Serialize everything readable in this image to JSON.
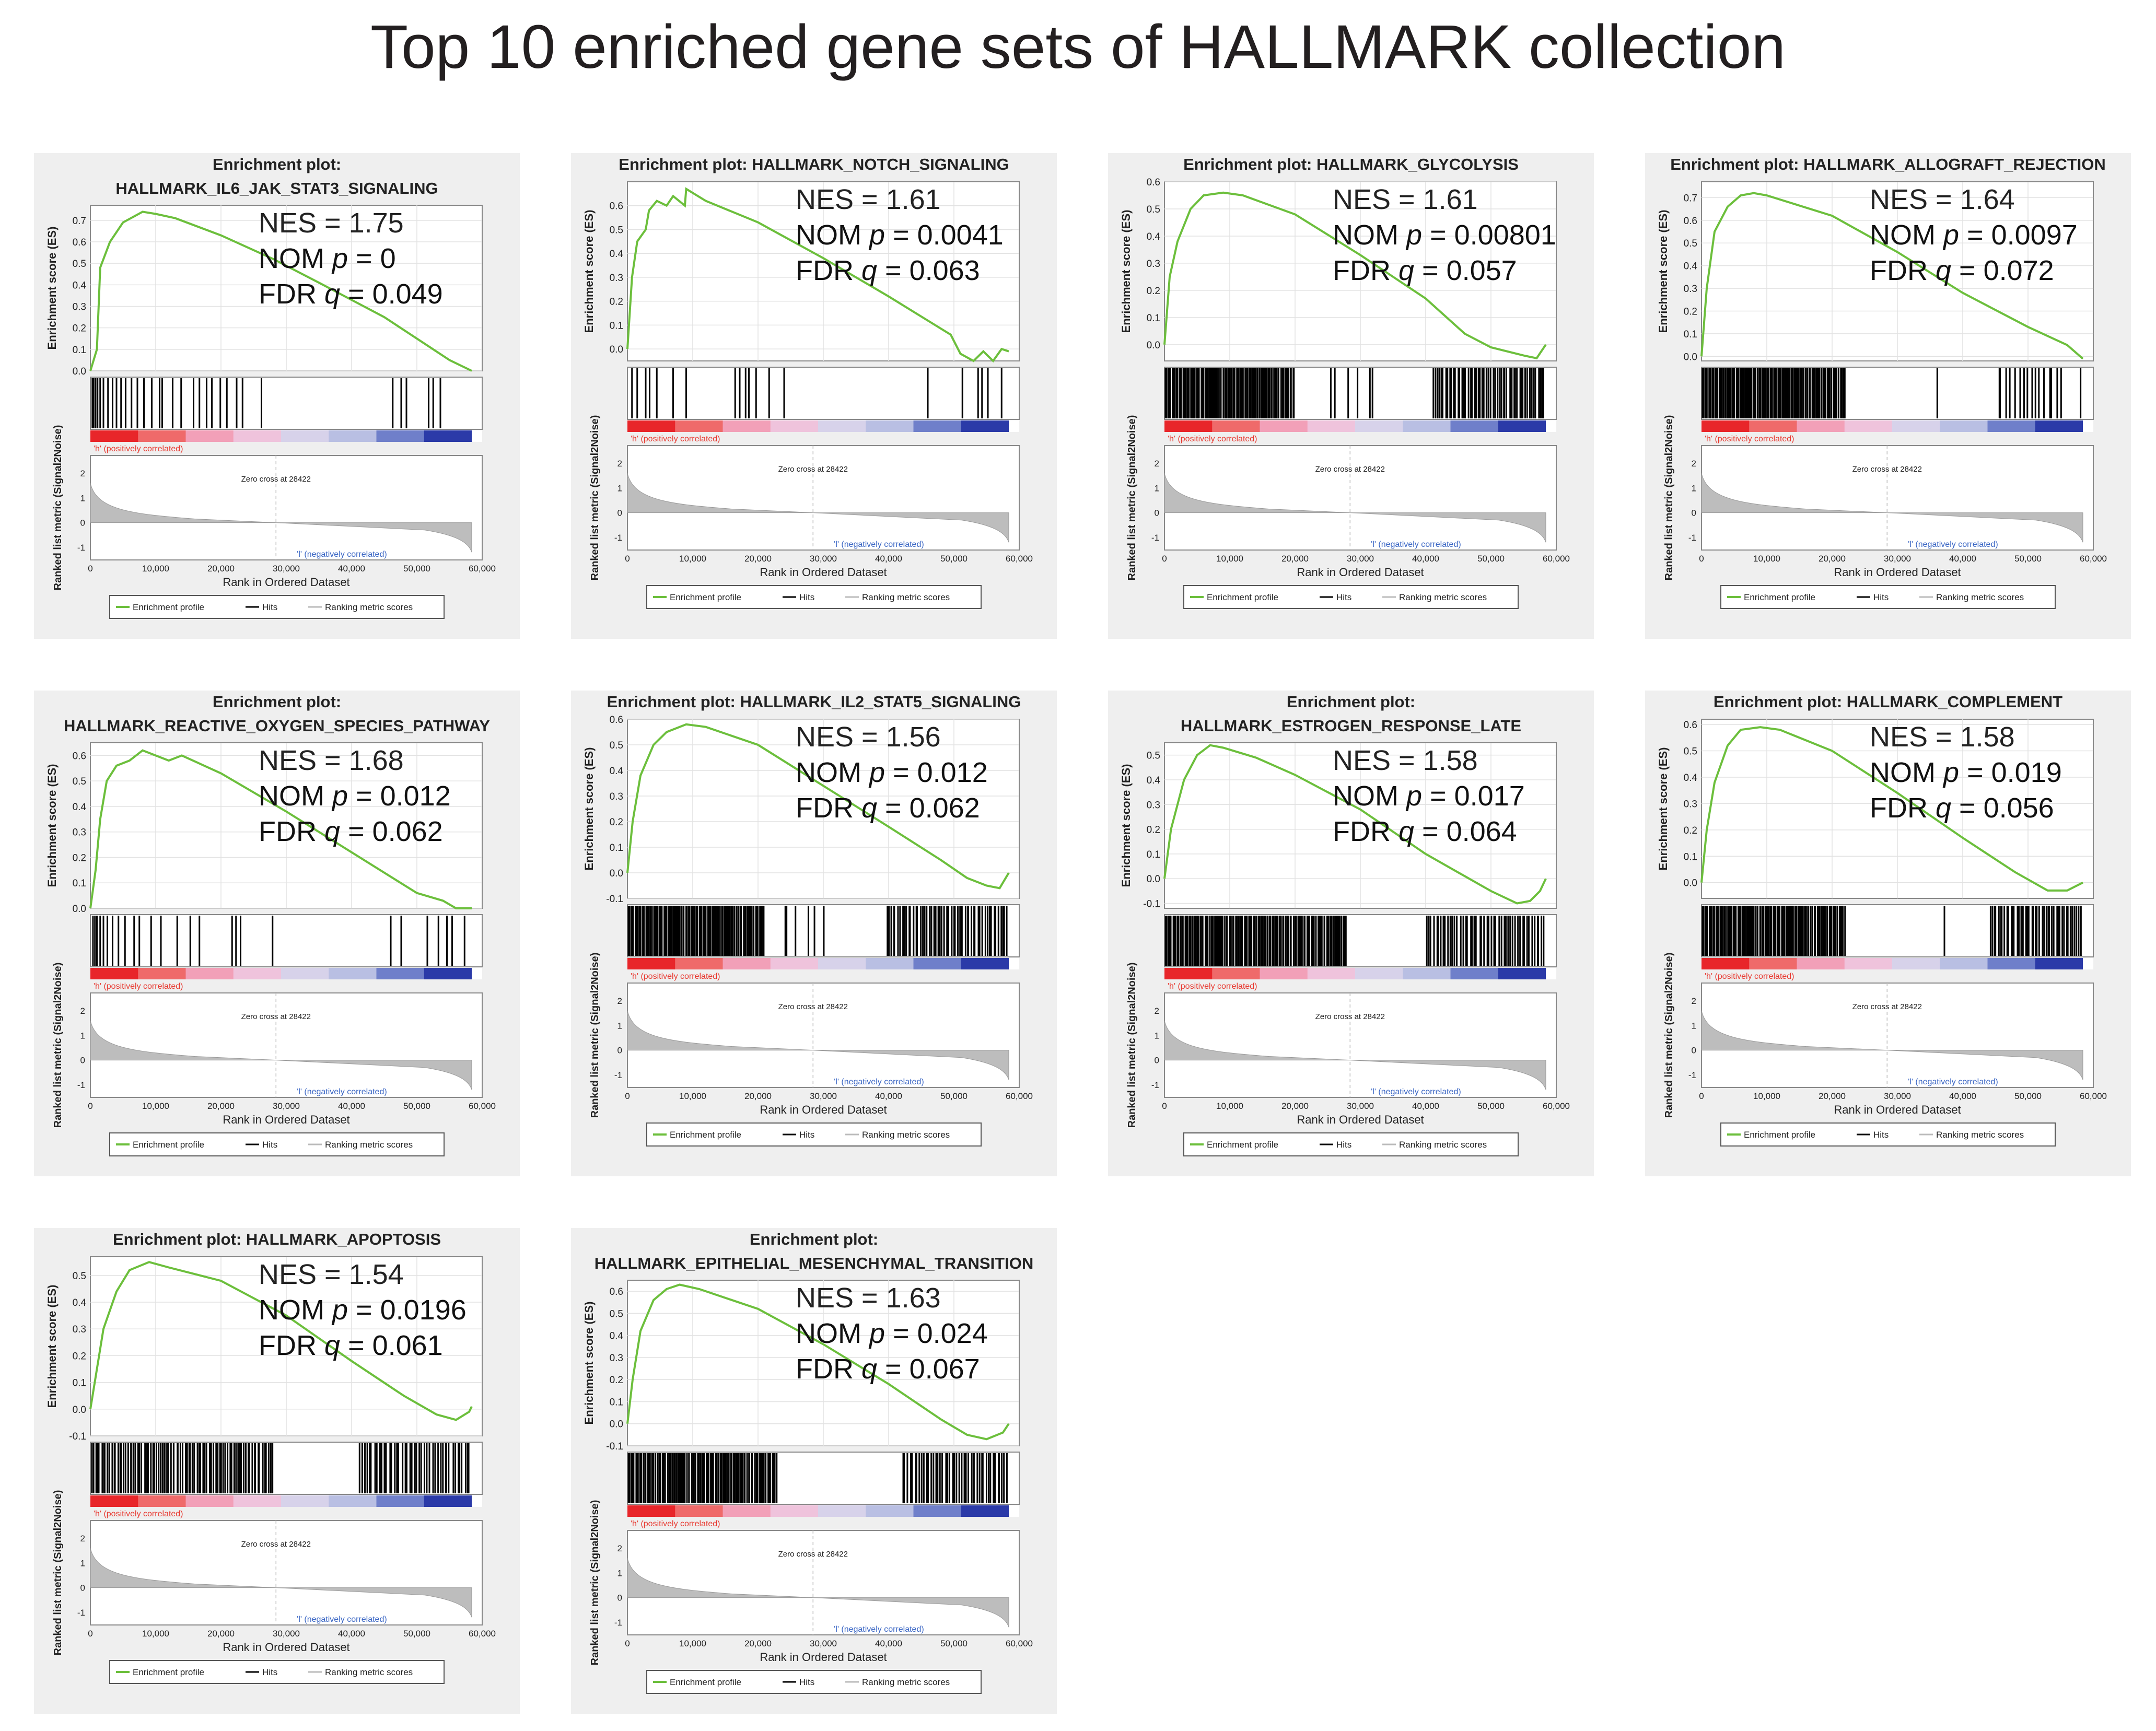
{
  "title": "Top 10 enriched gene sets of HALLMARK collection",
  "colors": {
    "panel_bg": "#efefef",
    "curve": "#6cbf3c",
    "hits": "#000000",
    "metric_fill": "#bdbdbd",
    "pos_label": "#e8382f",
    "neg_label": "#3a66c4",
    "bar_gradient": [
      "#e8262a",
      "#ef6a6a",
      "#f2a0b8",
      "#efc3dc",
      "#d7d2ea",
      "#b9bfe3",
      "#6f7fca",
      "#2b3aa8"
    ]
  },
  "common": {
    "es_ylabel": "Enrichment score (ES)",
    "metric_ylabel": "Ranked list metric (Signal2Noise)",
    "xlabel": "Rank in Ordered Dataset",
    "x_ticks": [
      "0",
      "10,000",
      "20,000",
      "30,000",
      "40,000",
      "50,000",
      "60,000"
    ],
    "metric_ticks": [
      "2",
      "1",
      "0",
      "-1"
    ],
    "pos_label": "'h' (positively correlated)",
    "neg_label": "'l' (negatively correlated)",
    "zero_cross": "Zero cross at 28422",
    "legend": {
      "profile": "Enrichment profile",
      "hits": "Hits",
      "metric": "Ranking metric scores"
    },
    "nes_prefix": "NES = ",
    "nom_prefix": "NOM ",
    "nom_var": "p",
    "fdr_prefix": "FDR ",
    "fdr_var": "q",
    "eq": " = ",
    "x_max": 60000,
    "zero_cross_rank": 28422,
    "n_genes": 58400
  },
  "chart_data": [
    {
      "type": "line",
      "title_line1": "Enrichment plot:",
      "title_line2": "HALLMARK_IL6_JAK_STAT3_SIGNALING",
      "nes": "1.75",
      "nom_p": "0",
      "fdr_q": "0.049",
      "es_ticks": [
        "0.0",
        "0.1",
        "0.2",
        "0.3",
        "0.4",
        "0.5",
        "0.6",
        "0.7"
      ],
      "ylim": [
        0,
        0.77
      ],
      "curve": [
        [
          0,
          0
        ],
        [
          1000,
          0.1
        ],
        [
          1500,
          0.48
        ],
        [
          3000,
          0.6
        ],
        [
          5000,
          0.69
        ],
        [
          8000,
          0.74
        ],
        [
          10000,
          0.73
        ],
        [
          13000,
          0.71
        ],
        [
          20000,
          0.63
        ],
        [
          28000,
          0.52
        ],
        [
          35000,
          0.41
        ],
        [
          45000,
          0.25
        ],
        [
          52000,
          0.11
        ],
        [
          55000,
          0.05
        ],
        [
          58400,
          0
        ]
      ],
      "hits": [
        300,
        500,
        800,
        1100,
        1500,
        2000,
        2700,
        3400,
        4000,
        4700,
        5400,
        6300,
        7200,
        8200,
        9400,
        10600,
        11000,
        12600,
        13900,
        15800,
        16700,
        17800,
        18600,
        19900,
        20900,
        22400,
        23300,
        26200,
        46300,
        47600,
        48400,
        51800,
        52500,
        53600
      ],
      "thin_hits": []
    },
    {
      "type": "line",
      "title_line1": "Enrichment plot: HALLMARK_NOTCH_SIGNALING",
      "title_line2": "",
      "nes": "1.61",
      "nom_p": "0.0041",
      "fdr_q": "0.063",
      "es_ticks": [
        "0.0",
        "0.1",
        "0.2",
        "0.3",
        "0.4",
        "0.5",
        "0.6"
      ],
      "ylim": [
        -0.05,
        0.7
      ],
      "curve": [
        [
          0,
          0
        ],
        [
          700,
          0.3
        ],
        [
          1500,
          0.45
        ],
        [
          2800,
          0.5
        ],
        [
          3300,
          0.58
        ],
        [
          4500,
          0.62
        ],
        [
          6000,
          0.6
        ],
        [
          7000,
          0.64
        ],
        [
          8800,
          0.6
        ],
        [
          9000,
          0.67
        ],
        [
          12000,
          0.62
        ],
        [
          20000,
          0.53
        ],
        [
          30000,
          0.38
        ],
        [
          40000,
          0.22
        ],
        [
          49500,
          0.06
        ],
        [
          51000,
          -0.02
        ],
        [
          53000,
          -0.05
        ],
        [
          54500,
          -0.01
        ],
        [
          56000,
          -0.05
        ],
        [
          57300,
          0
        ],
        [
          58400,
          -0.01
        ]
      ],
      "hits": [
        700,
        1500,
        2800,
        3400,
        4500,
        7000,
        9000,
        16500,
        17200,
        18100,
        18600,
        19700,
        21700,
        24000,
        46000,
        51300,
        53700,
        54300,
        55200,
        57300
      ],
      "thin_hits": []
    },
    {
      "type": "line",
      "title_line1": "Enrichment plot: HALLMARK_GLYCOLYSIS",
      "title_line2": "",
      "nes": "1.61",
      "nom_p": "0.00801",
      "fdr_q": "0.057",
      "es_ticks": [
        "0.0",
        "0.1",
        "0.2",
        "0.3",
        "0.4",
        "0.5",
        "0.6"
      ],
      "ylim": [
        -0.06,
        0.6
      ],
      "curve": [
        [
          0,
          0
        ],
        [
          800,
          0.25
        ],
        [
          2000,
          0.38
        ],
        [
          4000,
          0.5
        ],
        [
          6000,
          0.55
        ],
        [
          9000,
          0.56
        ],
        [
          12000,
          0.55
        ],
        [
          20000,
          0.48
        ],
        [
          30000,
          0.33
        ],
        [
          40000,
          0.17
        ],
        [
          46000,
          0.04
        ],
        [
          50000,
          -0.01
        ],
        [
          55000,
          -0.04
        ],
        [
          57000,
          -0.05
        ],
        [
          58400,
          0
        ]
      ],
      "hits": "dense:0-20000:95,24000-33000:6,41000-58300:55",
      "thin_hits": []
    },
    {
      "type": "line",
      "title_line1": "Enrichment plot: HALLMARK_ALLOGRAFT_REJECTION",
      "title_line2": "",
      "nes": "1.64",
      "nom_p": "0.0097",
      "fdr_q": "0.072",
      "es_ticks": [
        "0.0",
        "0.1",
        "0.2",
        "0.3",
        "0.4",
        "0.5",
        "0.6",
        "0.7"
      ],
      "ylim": [
        -0.02,
        0.77
      ],
      "curve": [
        [
          0,
          0
        ],
        [
          800,
          0.3
        ],
        [
          2000,
          0.55
        ],
        [
          4000,
          0.66
        ],
        [
          6000,
          0.71
        ],
        [
          8000,
          0.72
        ],
        [
          10000,
          0.71
        ],
        [
          20000,
          0.62
        ],
        [
          30000,
          0.46
        ],
        [
          40000,
          0.28
        ],
        [
          50000,
          0.13
        ],
        [
          56000,
          0.05
        ],
        [
          58400,
          -0.01
        ]
      ],
      "hits": "dense:0-22000:110,36000-37000:1,45000-55500:16,58000-58300:1",
      "thin_hits": []
    },
    {
      "type": "line",
      "title_line1": "Enrichment plot:",
      "title_line2": "HALLMARK_REACTIVE_OXYGEN_SPECIES_PATHWAY",
      "nes": "1.68",
      "nom_p": "0.012",
      "fdr_q": "0.062",
      "es_ticks": [
        "0.0",
        "0.1",
        "0.2",
        "0.3",
        "0.4",
        "0.5",
        "0.6"
      ],
      "ylim": [
        0,
        0.65
      ],
      "curve": [
        [
          0,
          0
        ],
        [
          800,
          0.15
        ],
        [
          1500,
          0.35
        ],
        [
          2500,
          0.5
        ],
        [
          4000,
          0.56
        ],
        [
          6000,
          0.58
        ],
        [
          8000,
          0.62
        ],
        [
          10000,
          0.6
        ],
        [
          12000,
          0.58
        ],
        [
          14000,
          0.6
        ],
        [
          20000,
          0.53
        ],
        [
          30000,
          0.38
        ],
        [
          40000,
          0.22
        ],
        [
          50000,
          0.06
        ],
        [
          54000,
          0.03
        ],
        [
          56000,
          0
        ],
        [
          58400,
          0
        ]
      ],
      "hits": [
        400,
        700,
        1000,
        1500,
        2000,
        2600,
        3400,
        4300,
        5300,
        6700,
        7500,
        9300,
        10800,
        13300,
        15300,
        16700,
        21700,
        22300,
        23000,
        27900,
        46000,
        47600,
        51600,
        53300,
        54600,
        55400,
        57300
      ],
      "thin_hits": []
    },
    {
      "type": "line",
      "title_line1": "Enrichment plot: HALLMARK_IL2_STAT5_SIGNALING",
      "title_line2": "",
      "nes": "1.56",
      "nom_p": "0.012",
      "fdr_q": "0.062",
      "es_ticks": [
        "-0.1",
        "0.0",
        "0.1",
        "0.2",
        "0.3",
        "0.4",
        "0.5",
        "0.6"
      ],
      "ylim": [
        -0.1,
        0.6
      ],
      "curve": [
        [
          0,
          0
        ],
        [
          800,
          0.2
        ],
        [
          2000,
          0.38
        ],
        [
          4000,
          0.5
        ],
        [
          6000,
          0.55
        ],
        [
          9000,
          0.58
        ],
        [
          12000,
          0.57
        ],
        [
          20000,
          0.5
        ],
        [
          30000,
          0.34
        ],
        [
          40000,
          0.18
        ],
        [
          48000,
          0.05
        ],
        [
          52000,
          -0.02
        ],
        [
          55000,
          -0.05
        ],
        [
          57000,
          -0.06
        ],
        [
          58400,
          0
        ]
      ],
      "hits": "dense:0-21000:100,23000-31000:6,39500-58300:55",
      "thin_hits": []
    },
    {
      "type": "line",
      "title_line1": "Enrichment plot:",
      "title_line2": "HALLMARK_ESTROGEN_RESPONSE_LATE",
      "nes": "1.58",
      "nom_p": "0.017",
      "fdr_q": "0.064",
      "es_ticks": [
        "-0.1",
        "0.0",
        "0.1",
        "0.2",
        "0.3",
        "0.4",
        "0.5"
      ],
      "ylim": [
        -0.12,
        0.55
      ],
      "curve": [
        [
          0,
          0
        ],
        [
          1000,
          0.2
        ],
        [
          3000,
          0.4
        ],
        [
          5000,
          0.5
        ],
        [
          7000,
          0.54
        ],
        [
          9000,
          0.53
        ],
        [
          14000,
          0.49
        ],
        [
          20000,
          0.42
        ],
        [
          30000,
          0.28
        ],
        [
          40000,
          0.1
        ],
        [
          50000,
          -0.05
        ],
        [
          54000,
          -0.1
        ],
        [
          56000,
          -0.09
        ],
        [
          57500,
          -0.05
        ],
        [
          58400,
          0
        ]
      ],
      "hits": "dense:0-28000:120,40000-58300:50",
      "thin_hits": []
    },
    {
      "type": "line",
      "title_line1": "Enrichment plot: HALLMARK_COMPLEMENT",
      "title_line2": "",
      "nes": "1.58",
      "nom_p": "0.019",
      "fdr_q": "0.056",
      "es_ticks": [
        "0.0",
        "0.1",
        "0.2",
        "0.3",
        "0.4",
        "0.5",
        "0.6"
      ],
      "ylim": [
        -0.06,
        0.62
      ],
      "curve": [
        [
          0,
          0
        ],
        [
          800,
          0.2
        ],
        [
          2000,
          0.38
        ],
        [
          4000,
          0.52
        ],
        [
          6000,
          0.58
        ],
        [
          9000,
          0.59
        ],
        [
          12000,
          0.58
        ],
        [
          20000,
          0.5
        ],
        [
          30000,
          0.34
        ],
        [
          40000,
          0.17
        ],
        [
          48000,
          0.04
        ],
        [
          53000,
          -0.03
        ],
        [
          56000,
          -0.03
        ],
        [
          58400,
          0
        ]
      ],
      "hits": "dense:0-22000:105,37000-38000:1,44000-58300:45",
      "thin_hits": []
    },
    {
      "type": "line",
      "title_line1": "Enrichment plot: HALLMARK_APOPTOSIS",
      "title_line2": "",
      "nes": "1.54",
      "nom_p": "0.0196",
      "fdr_q": "0.061",
      "es_ticks": [
        "-0.1",
        "0.0",
        "0.1",
        "0.2",
        "0.3",
        "0.4",
        "0.5"
      ],
      "ylim": [
        -0.1,
        0.57
      ],
      "curve": [
        [
          0,
          0
        ],
        [
          800,
          0.12
        ],
        [
          2000,
          0.3
        ],
        [
          4000,
          0.44
        ],
        [
          6000,
          0.52
        ],
        [
          9000,
          0.55
        ],
        [
          12000,
          0.53
        ],
        [
          20000,
          0.48
        ],
        [
          30000,
          0.35
        ],
        [
          40000,
          0.18
        ],
        [
          48000,
          0.05
        ],
        [
          53000,
          -0.02
        ],
        [
          56000,
          -0.04
        ],
        [
          58000,
          -0.01
        ],
        [
          58400,
          0.01
        ]
      ],
      "hits": "dense:0-28000:90,41000-58300:45",
      "thin_hits": []
    },
    {
      "type": "line",
      "title_line1": "Enrichment plot:",
      "title_line2": "HALLMARK_EPITHELIAL_MESENCHYMAL_TRANSITION",
      "nes": "1.63",
      "nom_p": "0.024",
      "fdr_q": "0.067",
      "es_ticks": [
        "-0.1",
        "0.0",
        "0.1",
        "0.2",
        "0.3",
        "0.4",
        "0.5",
        "0.6"
      ],
      "ylim": [
        -0.1,
        0.65
      ],
      "curve": [
        [
          0,
          0
        ],
        [
          800,
          0.2
        ],
        [
          2000,
          0.42
        ],
        [
          4000,
          0.56
        ],
        [
          6000,
          0.61
        ],
        [
          8000,
          0.63
        ],
        [
          11000,
          0.61
        ],
        [
          20000,
          0.52
        ],
        [
          30000,
          0.36
        ],
        [
          40000,
          0.18
        ],
        [
          48000,
          0.02
        ],
        [
          52000,
          -0.05
        ],
        [
          55000,
          -0.07
        ],
        [
          57500,
          -0.04
        ],
        [
          58400,
          0
        ]
      ],
      "hits": "dense:0-23000:100,42000-58300:45",
      "thin_hits": []
    }
  ]
}
